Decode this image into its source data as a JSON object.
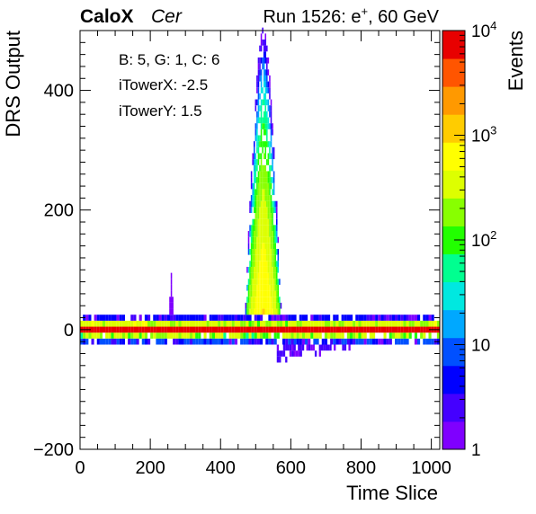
{
  "header": {
    "brand": "CaloX",
    "channel": "Cer",
    "run_prefix": "Run 1526: e",
    "run_sup": "+",
    "run_suffix": ", 60 GeV"
  },
  "info": {
    "line1": "B: 5, G: 1, C: 6",
    "line2": "iTowerX: -2.5",
    "line3": "iTowerY: 1.5"
  },
  "chart_data": {
    "type": "heatmap",
    "title": "",
    "xlabel": "Time Slice",
    "ylabel": "DRS Output",
    "zlabel": "Events",
    "xlim": [
      0,
      1024
    ],
    "ylim": [
      -200,
      500
    ],
    "zlim": [
      1,
      10000
    ],
    "z_scale": "log",
    "x_ticks": [
      0,
      200,
      400,
      600,
      800,
      1000
    ],
    "y_ticks": [
      -200,
      0,
      200,
      400
    ],
    "z_ticks": [
      {
        "value": 1,
        "base": "1",
        "exp": ""
      },
      {
        "value": 10,
        "base": "10",
        "exp": ""
      },
      {
        "value": 100,
        "base": "10",
        "exp": "2"
      },
      {
        "value": 1000,
        "base": "10",
        "exp": "3"
      },
      {
        "value": 10000,
        "base": "10",
        "exp": "4"
      }
    ],
    "bands": [
      {
        "x0": 0,
        "x1": 1024,
        "y0": -15,
        "y1": -5,
        "z": 200
      },
      {
        "x0": 0,
        "x1": 1024,
        "y0": -5,
        "y1": 5,
        "z": 10000
      },
      {
        "x0": 0,
        "x1": 1024,
        "y0": 5,
        "y1": 15,
        "z": 300
      },
      {
        "x0": 0,
        "x1": 1024,
        "y0": 15,
        "y1": 25,
        "z": 3
      },
      {
        "x0": 0,
        "x1": 1024,
        "y0": -25,
        "y1": -15,
        "z": 5
      }
    ],
    "features": [
      {
        "name": "pulse",
        "x_center": 520,
        "x_range": [
          470,
          590
        ],
        "y_peak": 500,
        "z_core": 1000
      },
      {
        "name": "undershoot",
        "x_range": [
          560,
          800
        ],
        "y_range": [
          -60,
          -25
        ],
        "z": 1
      },
      {
        "name": "spike",
        "x": 260,
        "y_range": [
          25,
          95
        ],
        "z": 1
      }
    ],
    "palette": [
      "#7f00ff",
      "#4400ff",
      "#0000ff",
      "#0050ff",
      "#00a8ff",
      "#00e8e0",
      "#00ff90",
      "#22ff00",
      "#88ff00",
      "#ddff00",
      "#ffff00",
      "#ffcc00",
      "#ff9900",
      "#ff5500",
      "#e80000"
    ]
  }
}
